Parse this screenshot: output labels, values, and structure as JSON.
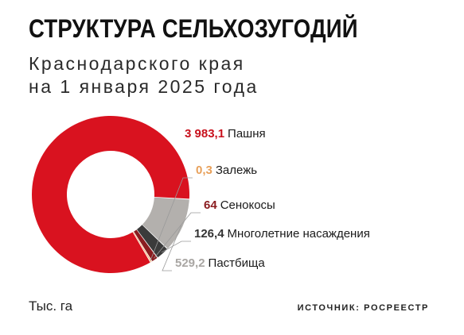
{
  "title": "СТРУКТУРА СЕЛЬХОЗУГОДИЙ",
  "subtitle_line1": "Краснодарского края",
  "subtitle_line2": "на 1 января 2025 года",
  "unit": "Тыс. га",
  "source": "ИСТОЧНИК: РОСРЕЕСТР",
  "chart_data": {
    "type": "pie",
    "style": "donut",
    "unit": "Тыс. га",
    "slices": [
      {
        "label": "Пашня",
        "value_text": "3 983,1",
        "value": 3983.1,
        "color": "#d9121f",
        "value_color": "#c8101c"
      },
      {
        "label": "Залежь",
        "value_text": "0,3",
        "value": 0.3,
        "color": "#f0a96b",
        "value_color": "#e8a05a"
      },
      {
        "label": "Сенокосы",
        "value_text": "64",
        "value": 64,
        "color": "#8b1d20",
        "value_color": "#8b1d20"
      },
      {
        "label": "Многолетние насаждения",
        "value_text": "126,4",
        "value": 126.4,
        "color": "#3b3b3b",
        "value_color": "#333333"
      },
      {
        "label": "Пастбища",
        "value_text": "529,2",
        "value": 529.2,
        "color": "#b3b0ad",
        "value_color": "#a9a6a3"
      }
    ]
  }
}
